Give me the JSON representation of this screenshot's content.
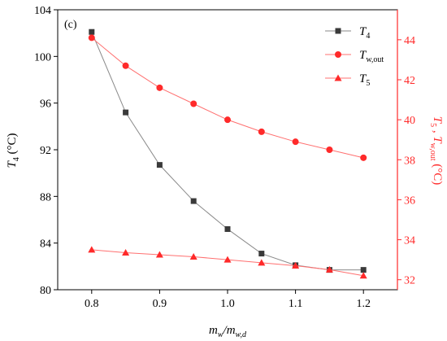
{
  "chart_data": {
    "type": "line",
    "panel_label": "(c)",
    "x": [
      0.8,
      0.85,
      0.9,
      0.95,
      1.0,
      1.05,
      1.1,
      1.15,
      1.2
    ],
    "xlim": [
      0.75,
      1.25
    ],
    "xticks": [
      0.8,
      0.9,
      1.0,
      1.1,
      1.2
    ],
    "xtick_labels": [
      "0.8",
      "0.9",
      "1.0",
      "1.1",
      "1.2"
    ],
    "xlabel": {
      "main": "m",
      "sub1": "w",
      "sep": "/m",
      "sub2": "w,d"
    },
    "ylim_left": [
      80,
      104
    ],
    "yticks_left": [
      80,
      84,
      88,
      92,
      96,
      100,
      104
    ],
    "ytick_labels_left": [
      "80",
      "84",
      "88",
      "92",
      "96",
      "100",
      "104"
    ],
    "ylabel_left": {
      "main": "T",
      "sub": "4",
      "unit": " (°C)"
    },
    "ylim_right": [
      31.5,
      45.5
    ],
    "yticks_right": [
      32,
      34,
      36,
      38,
      40,
      42,
      44
    ],
    "ytick_labels_right": [
      "32",
      "34",
      "36",
      "38",
      "40",
      "42",
      "44"
    ],
    "ylabel_right": {
      "p1": "T",
      "s1": "5",
      "mid": " , T",
      "s2": "w,out",
      "unit": " (°C)"
    },
    "legend_position": "top-right",
    "colors": {
      "black": "#3a3a3a",
      "red": "#ff2a2a",
      "red_line": "#ff7070"
    },
    "series": [
      {
        "name": "T",
        "name_sub": "4",
        "axis": "left",
        "marker": "square",
        "color": "#3a3a3a",
        "values": [
          102.1,
          95.2,
          90.7,
          87.6,
          85.2,
          83.1,
          82.1,
          81.7,
          81.7
        ]
      },
      {
        "name": "T",
        "name_sub": "w,out",
        "axis": "right",
        "marker": "circle",
        "color": "#ff2a2a",
        "values": [
          44.1,
          42.7,
          41.6,
          40.8,
          40.0,
          39.4,
          38.9,
          38.5,
          38.1
        ]
      },
      {
        "name": "T",
        "name_sub": "5",
        "axis": "right",
        "marker": "triangle",
        "color": "#ff2a2a",
        "values": [
          33.5,
          33.35,
          33.25,
          33.15,
          33.0,
          32.85,
          32.7,
          32.5,
          32.2
        ]
      }
    ]
  }
}
